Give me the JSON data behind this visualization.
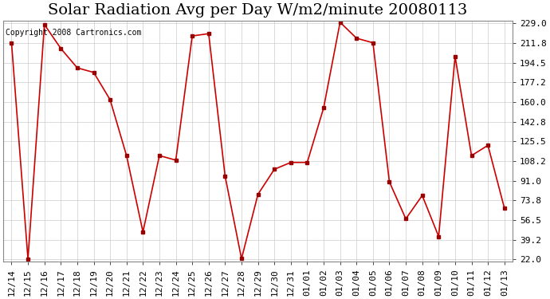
{
  "title": "Solar Radiation Avg per Day W/m2/minute 20080113",
  "copyright_text": "Copyright 2008 Cartronics.com",
  "x_labels": [
    "12/14",
    "12/15",
    "12/16",
    "12/17",
    "12/18",
    "12/19",
    "12/20",
    "12/21",
    "12/22",
    "12/23",
    "12/24",
    "12/25",
    "12/26",
    "12/27",
    "12/28",
    "12/29",
    "12/30",
    "12/31",
    "01/01",
    "01/02",
    "01/03",
    "01/04",
    "01/05",
    "01/06",
    "01/07",
    "01/08",
    "01/09",
    "01/10",
    "01/11",
    "01/12",
    "01/13"
  ],
  "y_values": [
    212.0,
    22.0,
    228.0,
    207.0,
    190.0,
    186.0,
    162.0,
    113.0,
    46.0,
    113.0,
    109.0,
    218.0,
    220.0,
    95.0,
    22.5,
    79.0,
    101.0,
    107.0,
    107.0,
    155.0,
    230.0,
    216.0,
    212.0,
    90.0,
    57.5,
    78.0,
    42.0,
    200.0,
    113.0,
    122.0,
    67.0
  ],
  "line_color": "#cc0000",
  "marker_color": "#990000",
  "bg_color": "#ffffff",
  "grid_color": "#cccccc",
  "title_fontsize": 14,
  "label_fontsize": 8,
  "copyright_fontsize": 7,
  "y_ticks": [
    22.0,
    39.2,
    56.5,
    73.8,
    91.0,
    108.2,
    125.5,
    142.8,
    160.0,
    177.2,
    194.5,
    211.8,
    229.0
  ],
  "y_min": 22.0,
  "y_max": 229.0
}
